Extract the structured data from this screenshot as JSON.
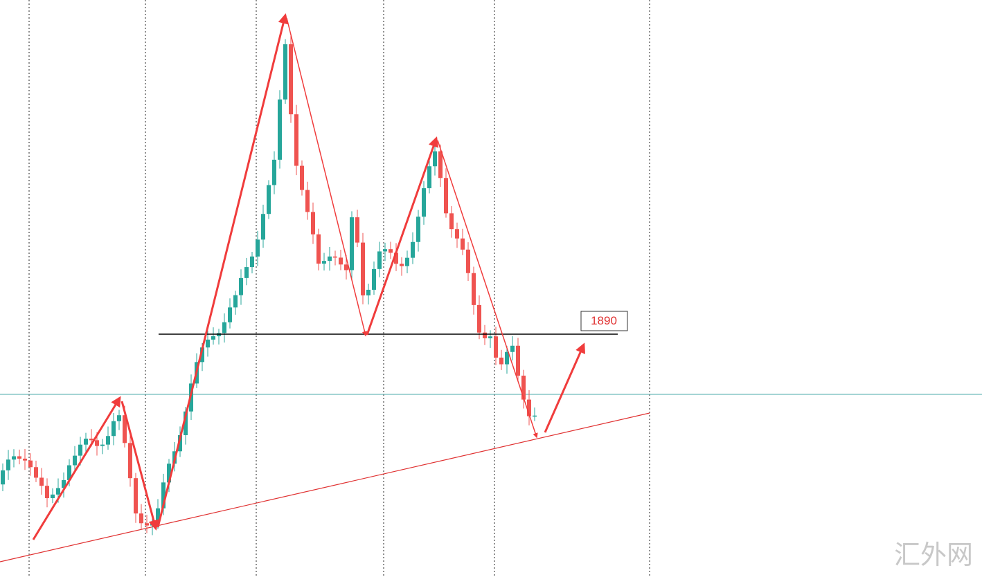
{
  "chart_data": {
    "type": "candlestick",
    "levels": [
      1890
    ]
  },
  "watermark": "汇外网"
}
